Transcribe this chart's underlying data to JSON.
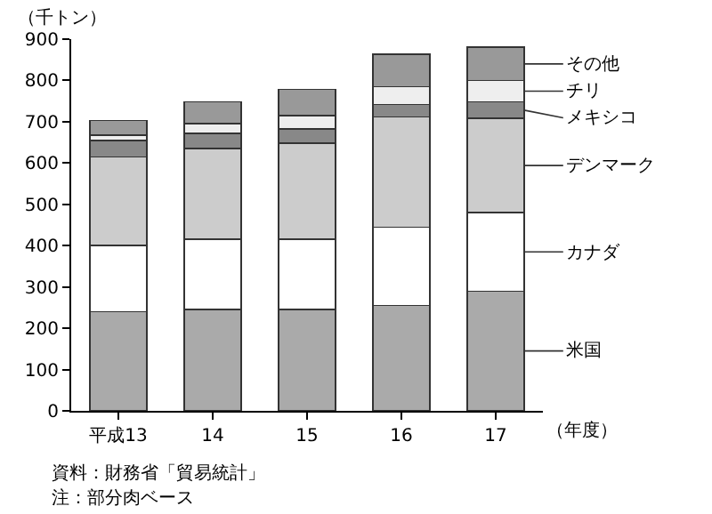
{
  "chart_data": {
    "type": "bar",
    "stacked": true,
    "xlabel": "（年度）",
    "ylabel": "（千トン）",
    "categories": [
      "平成13",
      "14",
      "15",
      "16",
      "17"
    ],
    "series": [
      {
        "name": "米国",
        "color": "#aaaaaa",
        "values": [
          240,
          245,
          245,
          255,
          290
        ]
      },
      {
        "name": "カナダ",
        "color": "#ffffff",
        "values": [
          160,
          170,
          170,
          190,
          190
        ]
      },
      {
        "name": "デンマーク",
        "color": "#cccccc",
        "values": [
          215,
          220,
          233,
          267,
          228
        ]
      },
      {
        "name": "メキシコ",
        "color": "#888888",
        "values": [
          40,
          37,
          35,
          30,
          40
        ]
      },
      {
        "name": "チリ",
        "color": "#eeeeee",
        "values": [
          13,
          23,
          32,
          43,
          52
        ]
      },
      {
        "name": "その他",
        "color": "#999999",
        "values": [
          35,
          53,
          63,
          78,
          80
        ]
      }
    ],
    "ylim": [
      0,
      900
    ],
    "yticks": [
      0,
      100,
      200,
      300,
      400,
      500,
      600,
      700,
      800,
      900
    ],
    "grid": false,
    "legend": "right",
    "annotations": [
      "資料：財務省「貿易統計」",
      "注：部分肉ベース"
    ]
  }
}
